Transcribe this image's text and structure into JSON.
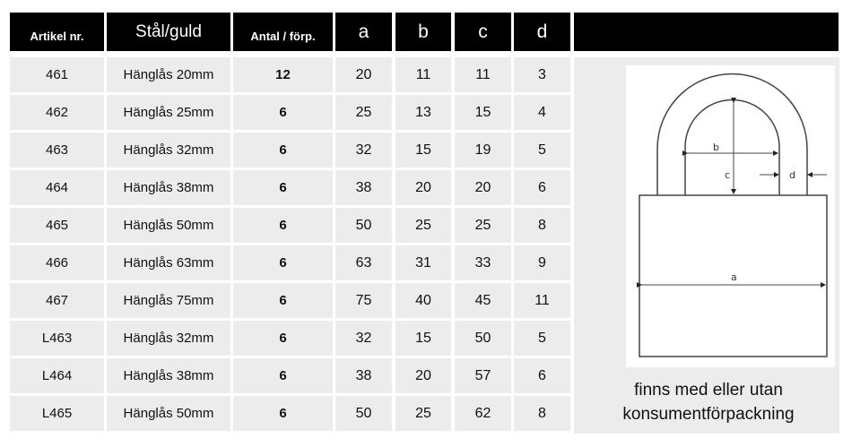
{
  "headers": [
    "Artikel  nr.",
    "Stål/guld",
    "Antal / förp.",
    "a",
    "b",
    "c",
    "d",
    ""
  ],
  "rows": [
    [
      "461",
      "Hänglås  20mm",
      "12",
      "20",
      "11",
      "11",
      "3"
    ],
    [
      "462",
      "Hänglås  25mm",
      "6",
      "25",
      "13",
      "15",
      "4"
    ],
    [
      "463",
      "Hänglås  32mm",
      "6",
      "32",
      "15",
      "19",
      "5"
    ],
    [
      "464",
      "Hänglås  38mm",
      "6",
      "38",
      "20",
      "20",
      "6"
    ],
    [
      "465",
      "Hänglås  50mm",
      "6",
      "50",
      "25",
      "25",
      "8"
    ],
    [
      "466",
      "Hänglås  63mm",
      "6",
      "63",
      "31",
      "33",
      "9"
    ],
    [
      "467",
      "Hänglås  75mm",
      "6",
      "75",
      "40",
      "45",
      "11"
    ],
    [
      "L463",
      "Hänglås  32mm",
      "6",
      "32",
      "15",
      "50",
      "5"
    ],
    [
      "L464",
      "Hänglås  38mm",
      "6",
      "38",
      "20",
      "57",
      "6"
    ],
    [
      "L465",
      "Hänglås  50mm",
      "6",
      "50",
      "25",
      "62",
      "8"
    ]
  ],
  "diagram": {
    "labels": {
      "a": "a",
      "b": "b",
      "c": "c",
      "d": "d"
    }
  },
  "note": {
    "line1": "finns med eller utan",
    "line2": "konsumentförpackning"
  }
}
